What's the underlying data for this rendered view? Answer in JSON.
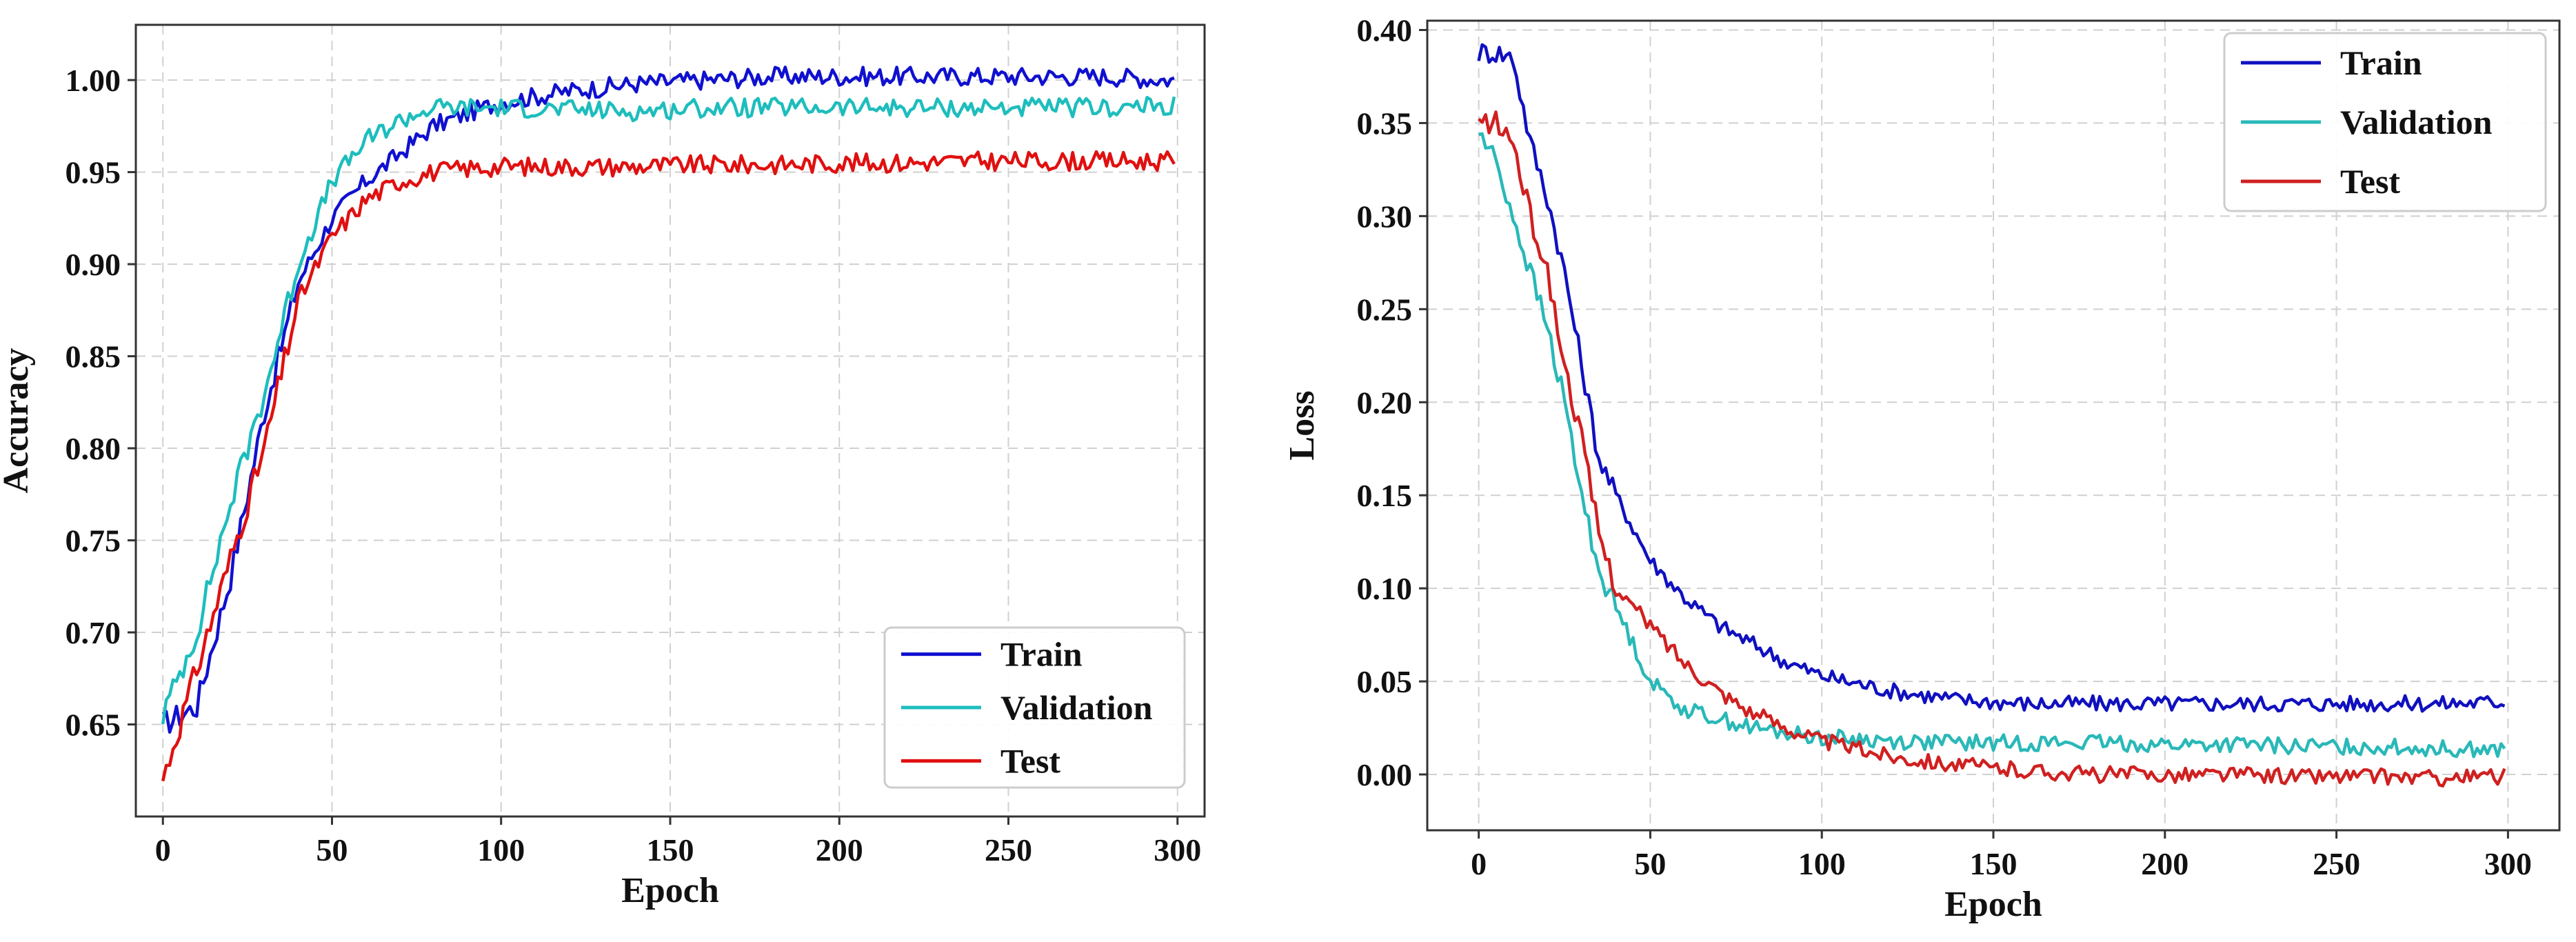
{
  "chart_data": [
    {
      "type": "line",
      "title": "",
      "xlabel": "Epoch",
      "ylabel": "Accuracy",
      "xlim": [
        -8,
        308
      ],
      "ylim": [
        0.6,
        1.03
      ],
      "xticks": [
        0,
        50,
        100,
        150,
        200,
        250,
        300
      ],
      "yticks": [
        0.65,
        0.7,
        0.75,
        0.8,
        0.85,
        0.9,
        0.95,
        1.0
      ],
      "xtick_labels": [
        "0",
        "50",
        "100",
        "150",
        "200",
        "250",
        "300"
      ],
      "ytick_labels": [
        "0.65",
        "0.70",
        "0.75",
        "0.80",
        "0.85",
        "0.90",
        "0.95",
        "1.00"
      ],
      "grid": true,
      "legend_position": "lower-right",
      "x": [
        0,
        10,
        20,
        30,
        40,
        50,
        60,
        70,
        80,
        90,
        100,
        120,
        140,
        160,
        180,
        200,
        220,
        240,
        260,
        280,
        299
      ],
      "series": [
        {
          "name": "Train",
          "color": "#1010d0",
          "values": [
            0.65,
            0.66,
            0.73,
            0.82,
            0.89,
            0.925,
            0.945,
            0.96,
            0.975,
            0.982,
            0.988,
            0.994,
            0.998,
            1.0,
            1.002,
            1.002,
            1.002,
            1.002,
            1.002,
            1.002,
            1.0
          ]
        },
        {
          "name": "Validation",
          "color": "#1ebdbd",
          "values": [
            0.655,
            0.7,
            0.77,
            0.83,
            0.9,
            0.945,
            0.967,
            0.978,
            0.985,
            0.985,
            0.985,
            0.984,
            0.983,
            0.985,
            0.985,
            0.985,
            0.985,
            0.985,
            0.985,
            0.985,
            0.986
          ]
        },
        {
          "name": "Test",
          "color": "#e01010",
          "values": [
            0.62,
            0.68,
            0.74,
            0.8,
            0.88,
            0.915,
            0.935,
            0.945,
            0.95,
            0.952,
            0.953,
            0.953,
            0.953,
            0.954,
            0.954,
            0.955,
            0.955,
            0.956,
            0.956,
            0.956,
            0.956
          ]
        }
      ]
    },
    {
      "type": "line",
      "title": "",
      "xlabel": "Epoch",
      "ylabel": "Loss",
      "xlim": [
        -15,
        315
      ],
      "ylim": [
        -0.03,
        0.405
      ],
      "xticks": [
        0,
        50,
        100,
        150,
        200,
        250,
        300
      ],
      "yticks": [
        0.0,
        0.05,
        0.1,
        0.15,
        0.2,
        0.25,
        0.3,
        0.35,
        0.4
      ],
      "xtick_labels": [
        "0",
        "50",
        "100",
        "150",
        "200",
        "250",
        "300"
      ],
      "ytick_labels": [
        "0.00",
        "0.05",
        "0.10",
        "0.15",
        "0.20",
        "0.25",
        "0.30",
        "0.35",
        "0.40"
      ],
      "grid": true,
      "legend_position": "top-right",
      "x": [
        0,
        5,
        10,
        15,
        20,
        25,
        30,
        35,
        40,
        50,
        60,
        70,
        80,
        90,
        100,
        120,
        140,
        160,
        180,
        200,
        220,
        240,
        260,
        280,
        299
      ],
      "series": [
        {
          "name": "Train",
          "color": "#1010c0",
          "values": [
            0.388,
            0.388,
            0.385,
            0.34,
            0.31,
            0.27,
            0.22,
            0.17,
            0.15,
            0.115,
            0.095,
            0.08,
            0.07,
            0.06,
            0.053,
            0.045,
            0.04,
            0.038,
            0.038,
            0.038,
            0.038,
            0.038,
            0.038,
            0.038,
            0.039
          ]
        },
        {
          "name": "Validation",
          "color": "#2ab8b8",
          "values": [
            0.345,
            0.33,
            0.3,
            0.27,
            0.24,
            0.2,
            0.15,
            0.11,
            0.09,
            0.05,
            0.035,
            0.03,
            0.025,
            0.022,
            0.02,
            0.018,
            0.017,
            0.017,
            0.017,
            0.016,
            0.016,
            0.015,
            0.015,
            0.014,
            0.013
          ]
        },
        {
          "name": "Test",
          "color": "#d02020",
          "values": [
            0.35,
            0.35,
            0.34,
            0.3,
            0.27,
            0.22,
            0.18,
            0.13,
            0.1,
            0.08,
            0.06,
            0.045,
            0.033,
            0.025,
            0.018,
            0.01,
            0.005,
            0.002,
            0.0,
            0.0,
            0.0,
            -0.001,
            -0.001,
            -0.002,
            -0.001
          ]
        }
      ]
    }
  ]
}
